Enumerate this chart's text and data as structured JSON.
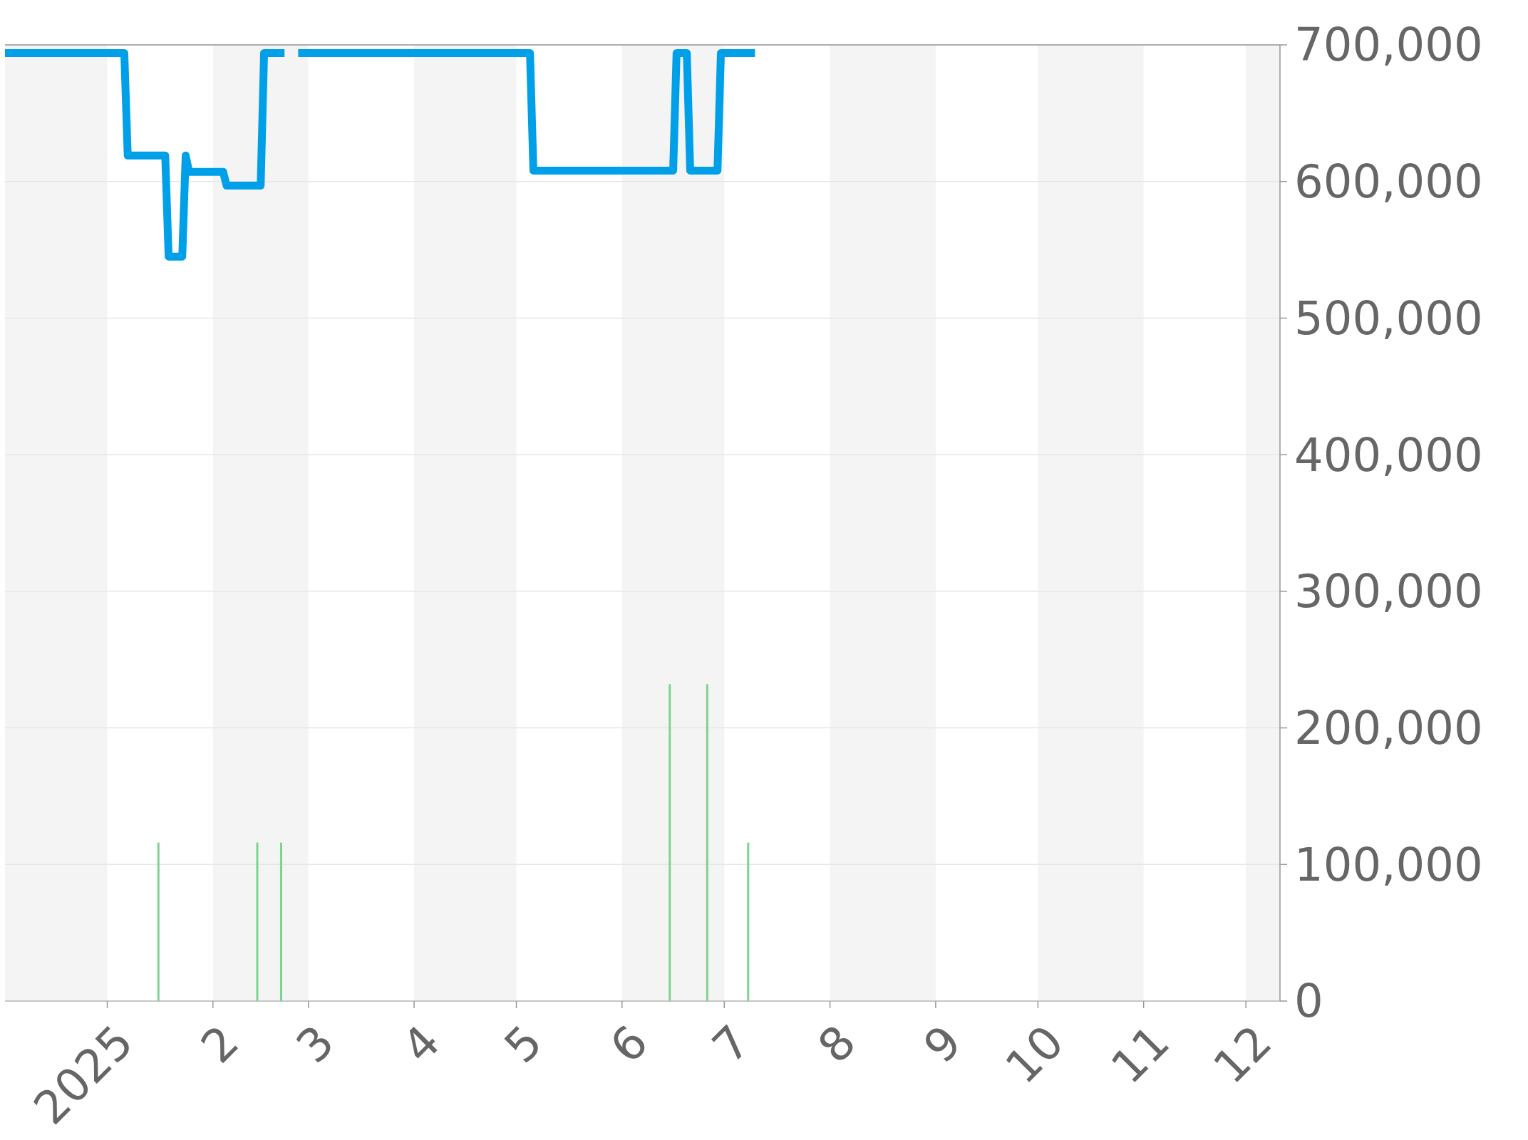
{
  "chart_data": {
    "type": "line",
    "xlim": [
      "2024-12-02",
      "2025-12-11"
    ],
    "xticks": [
      {
        "value": "2025-01-01",
        "label": "2025"
      },
      {
        "value": "2025-02-01",
        "label": "2"
      },
      {
        "value": "2025-03-01",
        "label": "3"
      },
      {
        "value": "2025-04-01",
        "label": "4"
      },
      {
        "value": "2025-05-01",
        "label": "5"
      },
      {
        "value": "2025-06-01",
        "label": "6"
      },
      {
        "value": "2025-07-01",
        "label": "7"
      },
      {
        "value": "2025-08-01",
        "label": "8"
      },
      {
        "value": "2025-09-01",
        "label": "9"
      },
      {
        "value": "2025-10-01",
        "label": "10"
      },
      {
        "value": "2025-11-01",
        "label": "11"
      },
      {
        "value": "2025-12-01",
        "label": "12"
      }
    ],
    "ylim": [
      0,
      700000
    ],
    "yticks": [
      0,
      {
        "value": 100000,
        "label": "100,000"
      },
      {
        "value": 200000,
        "label": "200,000"
      },
      {
        "value": 300000,
        "label": "300,000"
      },
      {
        "value": 400000,
        "label": "400,000"
      },
      {
        "value": 500000,
        "label": "500,000"
      },
      {
        "value": 600000,
        "label": "600,000"
      },
      {
        "value": 700000,
        "label": "700,000"
      }
    ],
    "grid": "y",
    "bands": [
      {
        "axis": "x",
        "from": "2024-12-02",
        "to": "2025-01-01",
        "color": "#f4f4f4"
      },
      {
        "axis": "x",
        "from": "2025-02-01",
        "to": "2025-03-01",
        "color": "#f4f4f4"
      },
      {
        "axis": "x",
        "from": "2025-04-01",
        "to": "2025-05-01",
        "color": "#f4f4f4"
      },
      {
        "axis": "x",
        "from": "2025-06-01",
        "to": "2025-07-01",
        "color": "#f4f4f4"
      },
      {
        "axis": "x",
        "from": "2025-08-01",
        "to": "2025-09-01",
        "color": "#f4f4f4"
      },
      {
        "axis": "x",
        "from": "2025-10-01",
        "to": "2025-11-01",
        "color": "#f4f4f4"
      },
      {
        "axis": "x",
        "from": "2025-12-01",
        "to": "2025-12-11",
        "color": "#f4f4f4"
      }
    ],
    "series": [
      {
        "type": "bar",
        "color": "#7fd38e",
        "x": [
          "2025-01-16",
          "2025-02-14",
          "2025-02-21",
          "2025-06-15",
          "2025-06-26",
          "2025-07-08"
        ],
        "values": [
          116000,
          116000,
          116000,
          232000,
          232000,
          116000
        ]
      },
      {
        "color": "#00a0e9",
        "x": [
          "2024-12-02",
          "2025-01-06",
          "2025-01-07",
          "2025-01-18",
          "2025-01-19",
          "2025-01-23",
          "2025-01-24",
          "2025-01-25",
          "2025-02-04",
          "2025-02-05",
          "2025-02-15",
          "2025-02-16",
          "2025-02-22",
          "2025-02-24",
          "2025-02-26",
          "2025-05-05",
          "2025-05-06",
          "2025-06-16",
          "2025-06-17",
          "2025-06-20",
          "2025-06-21",
          "2025-06-29",
          "2025-06-30",
          "2025-07-10"
        ],
        "values": [
          694000,
          694000,
          619000,
          619000,
          545000,
          545000,
          619000,
          607000,
          607000,
          597000,
          597000,
          694000,
          694000,
          null,
          694000,
          694000,
          608000,
          608000,
          694000,
          694000,
          608000,
          608000,
          694000,
          694000
        ]
      }
    ]
  }
}
